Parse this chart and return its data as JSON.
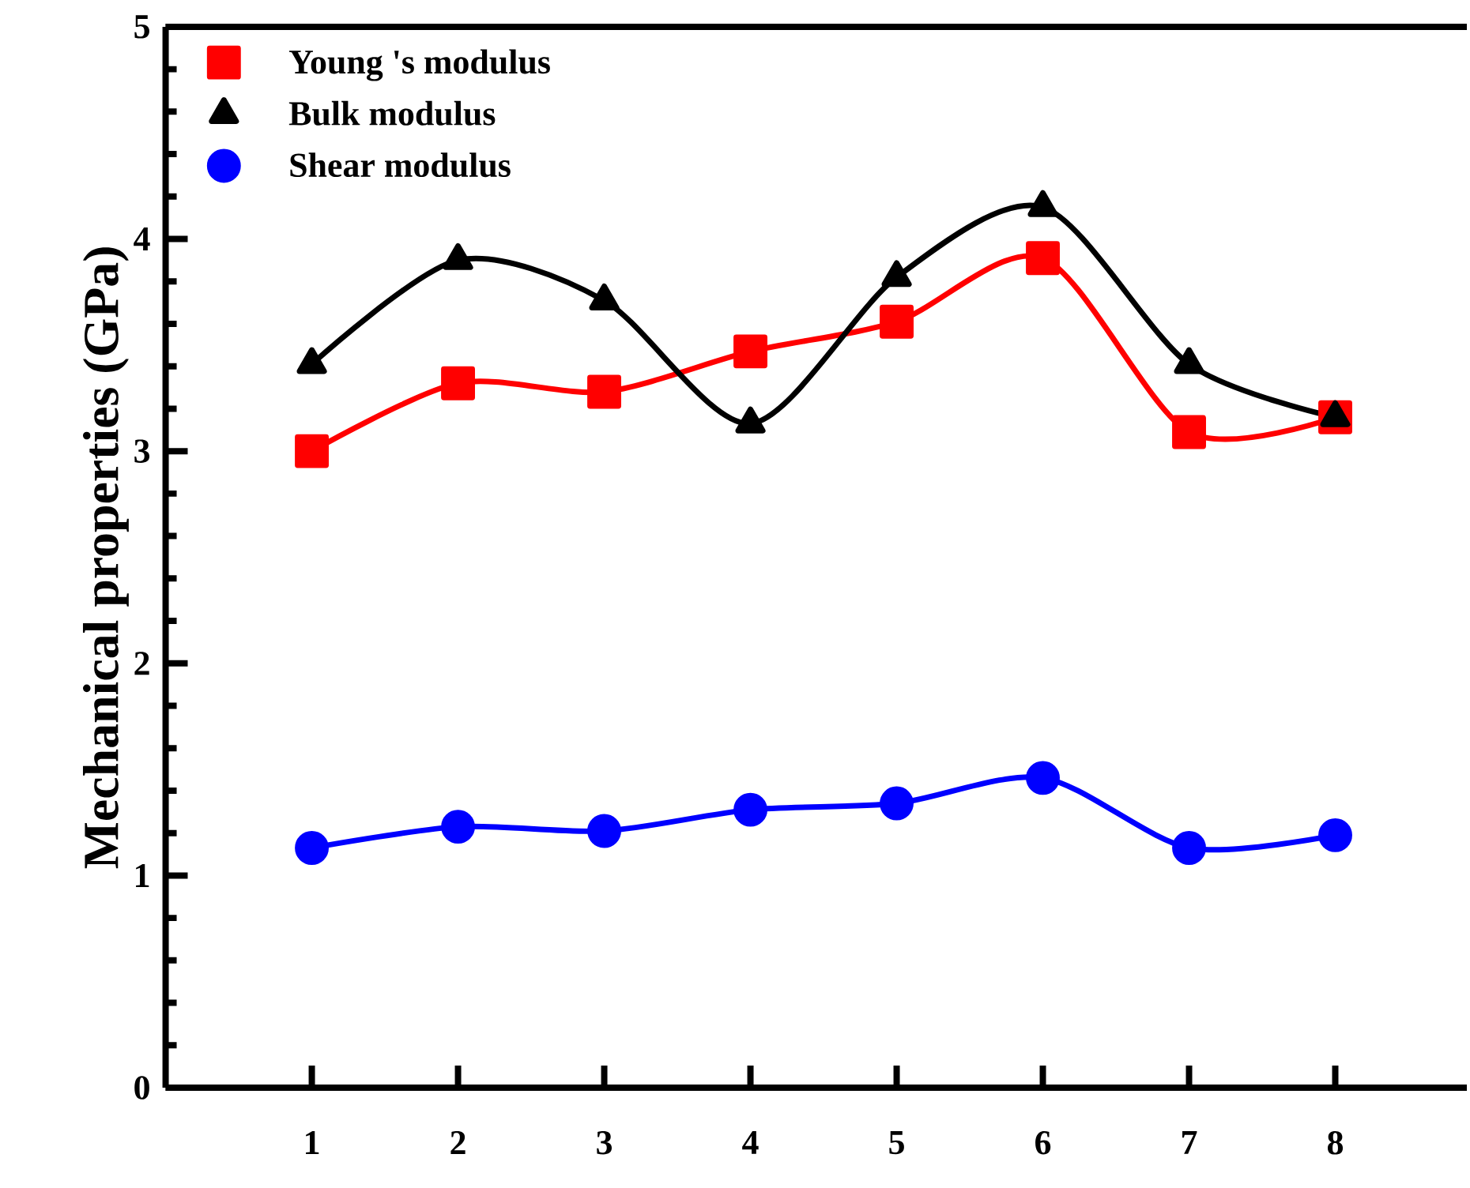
{
  "chart_data": {
    "type": "line",
    "ylabel": "Mechanical properties (GPa)",
    "x": [
      1,
      2,
      3,
      4,
      5,
      6,
      7,
      8
    ],
    "xlim": [
      0,
      8.9
    ],
    "xticks": [
      1,
      2,
      3,
      4,
      5,
      6,
      7,
      8
    ],
    "ylim": [
      0,
      5
    ],
    "yticks": [
      0,
      1,
      2,
      3,
      4,
      5
    ],
    "legend": "top left",
    "series": [
      {
        "name": "Young 's modulus",
        "color": "#ff0000",
        "marker": "square",
        "values": [
          3.0,
          3.32,
          3.28,
          3.47,
          3.61,
          3.91,
          3.09,
          3.16
        ]
      },
      {
        "name": "Bulk modulus",
        "color": "#000000",
        "marker": "triangle",
        "values": [
          3.41,
          3.9,
          3.71,
          3.13,
          3.82,
          4.15,
          3.41,
          3.16
        ]
      },
      {
        "name": "Shear modulus",
        "color": "#0000ff",
        "marker": "circle",
        "values": [
          1.13,
          1.23,
          1.21,
          1.31,
          1.34,
          1.46,
          1.13,
          1.19
        ]
      }
    ]
  }
}
